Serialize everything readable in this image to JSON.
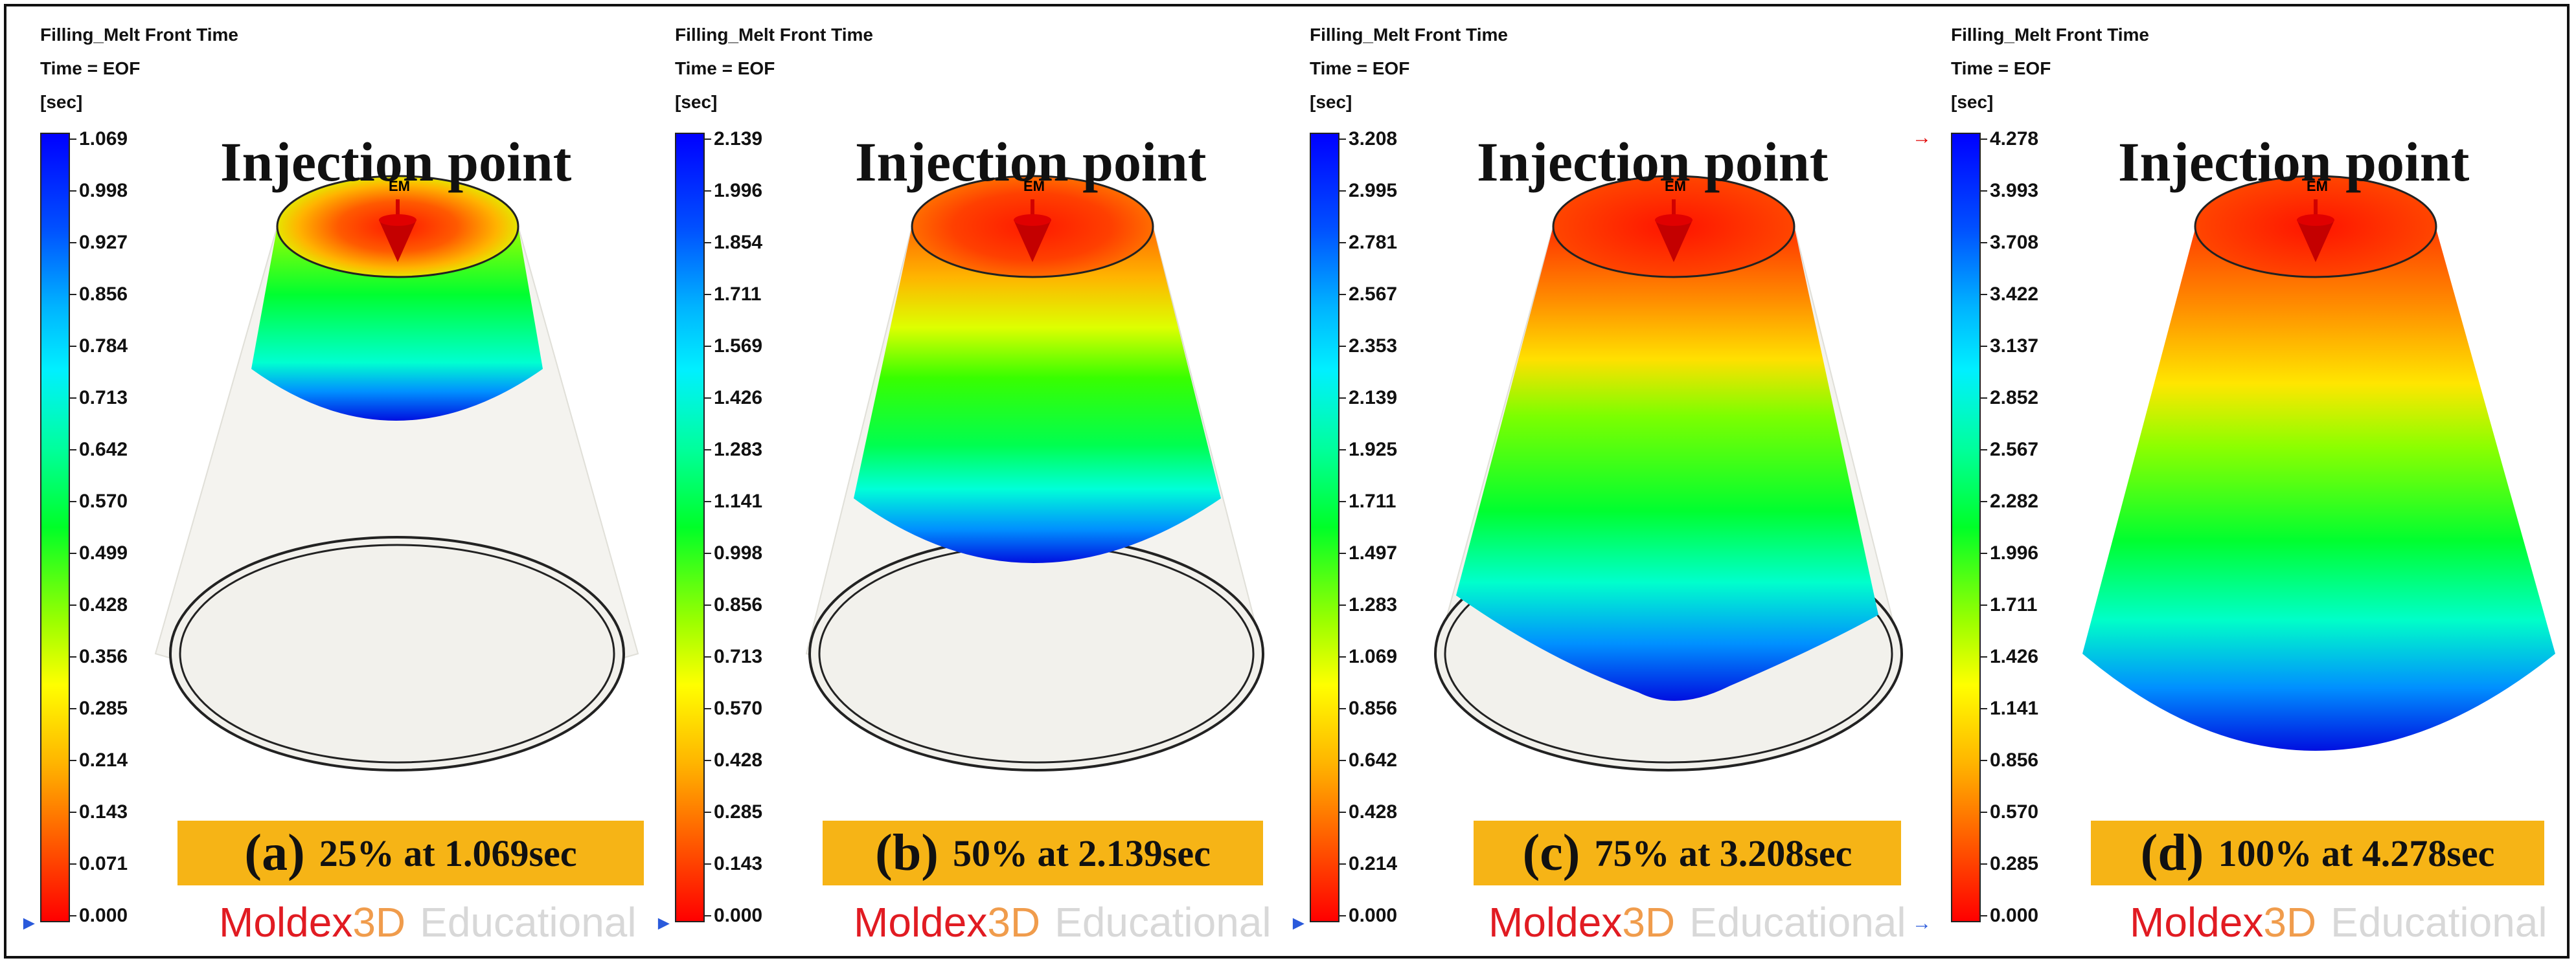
{
  "panels": [
    {
      "result_name": "Filling_Melt Front Time",
      "time": "Time = EOF",
      "unit": "[sec]",
      "legend": [
        "1.069",
        "0.998",
        "0.927",
        "0.856",
        "0.784",
        "0.713",
        "0.642",
        "0.570",
        "0.499",
        "0.428",
        "0.356",
        "0.285",
        "0.214",
        "0.143",
        "0.071",
        "0.000"
      ],
      "heading": "Injection point",
      "gate_label": "EM",
      "caption_label": "(a)",
      "caption_text": "25% at 1.069sec",
      "fill_percent": 25,
      "fill_time_sec": 1.069
    },
    {
      "result_name": "Filling_Melt Front Time",
      "time": "Time = EOF",
      "unit": "[sec]",
      "legend": [
        "2.139",
        "1.996",
        "1.854",
        "1.711",
        "1.569",
        "1.426",
        "1.283",
        "1.141",
        "0.998",
        "0.856",
        "0.713",
        "0.570",
        "0.428",
        "0.285",
        "0.143",
        "0.000"
      ],
      "heading": "Injection point",
      "gate_label": "EM",
      "caption_label": "(b)",
      "caption_text": "50% at 2.139sec",
      "fill_percent": 50,
      "fill_time_sec": 2.139
    },
    {
      "result_name": "Filling_Melt Front Time",
      "time": "Time = EOF",
      "unit": "[sec]",
      "legend": [
        "3.208",
        "2.995",
        "2.781",
        "2.567",
        "2.353",
        "2.139",
        "1.925",
        "1.711",
        "1.497",
        "1.283",
        "1.069",
        "0.856",
        "0.642",
        "0.428",
        "0.214",
        "0.000"
      ],
      "heading": "Injection point",
      "gate_label": "EM",
      "caption_label": "(c)",
      "caption_text": "75% at 3.208sec",
      "fill_percent": 75,
      "fill_time_sec": 3.208
    },
    {
      "result_name": "Filling_Melt Front Time",
      "time": "Time = EOF",
      "unit": "[sec]",
      "legend": [
        "4.278",
        "3.993",
        "3.708",
        "3.422",
        "3.137",
        "2.852",
        "2.567",
        "2.282",
        "1.996",
        "1.711",
        "1.426",
        "1.141",
        "0.856",
        "0.570",
        "0.285",
        "0.000"
      ],
      "heading": "Injection point",
      "gate_label": "EM",
      "caption_label": "(d)",
      "caption_text": "100% at 4.278sec",
      "fill_percent": 100,
      "fill_time_sec": 4.278
    }
  ],
  "brand": {
    "name_part1": "Moldex",
    "name_part2": "3D",
    "edition": "Educational"
  },
  "colors": {
    "caption_bg": "#f6b416",
    "brand_red": "#e11b22",
    "brand_orange": "#f09c4c",
    "brand_gray": "#d8d8d8"
  }
}
